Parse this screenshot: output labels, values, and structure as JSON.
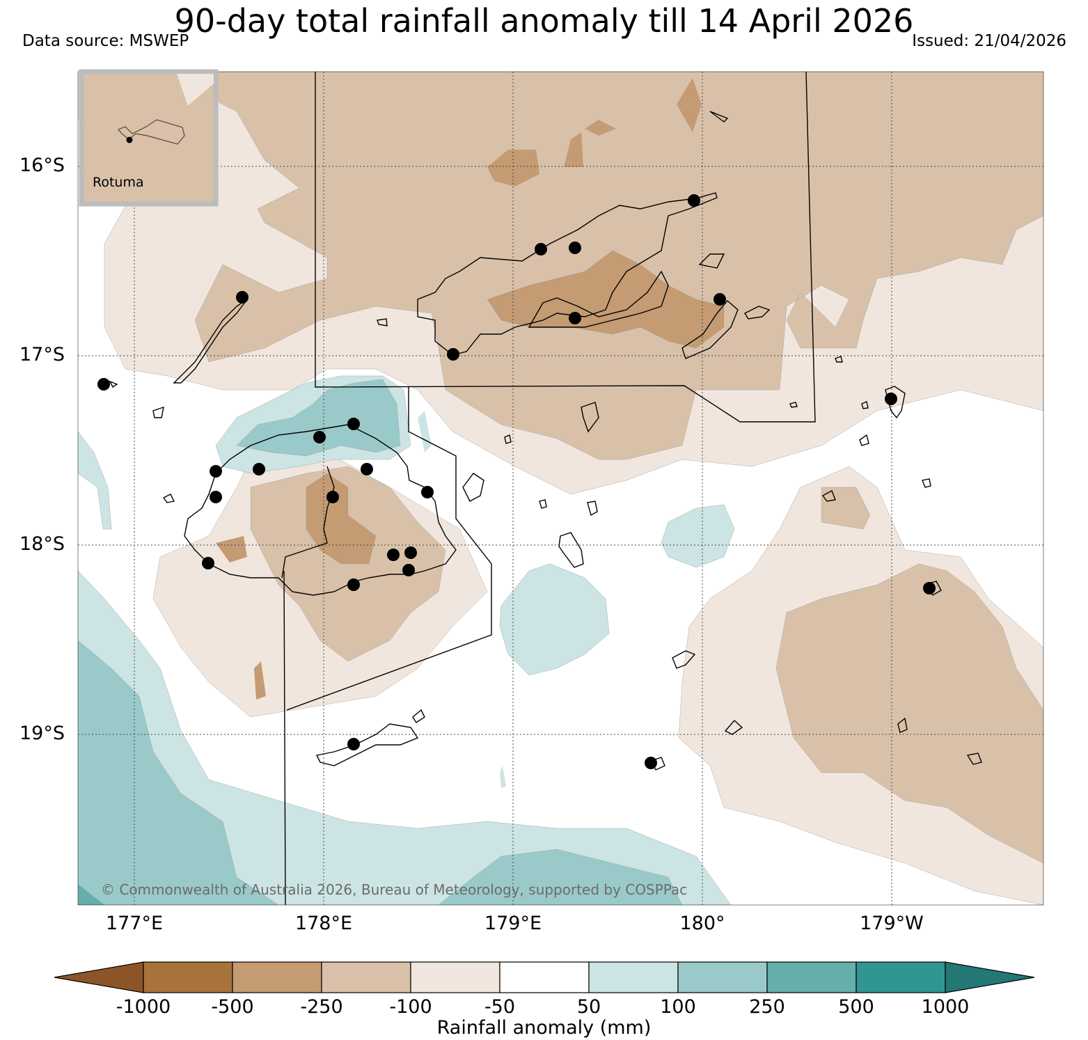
{
  "header": {
    "title": "90-day total rainfall anomaly till 14 April 2026",
    "data_source": "Data source: MSWEP",
    "issued": "Issued: 21/04/2026"
  },
  "map": {
    "latitude_labels": [
      "16°S",
      "17°S",
      "18°S",
      "19°S"
    ],
    "longitude_labels": [
      "177°E",
      "178°E",
      "179°E",
      "180°",
      "179°W"
    ],
    "inset_label": "Rotuma",
    "copyright": "© Commonwealth of Australia 2026, Bureau of Meteorology, supported by COSPPac"
  },
  "colorbar": {
    "label": "Rainfall anomaly (mm)",
    "ticks": [
      "-1000",
      "-500",
      "-250",
      "-100",
      "-50",
      "50",
      "100",
      "250",
      "500",
      "1000"
    ],
    "colors": {
      "below_min": "#8c5527",
      "bin_-1000_-500": "#a8733b",
      "bin_-500_-250": "#c49b72",
      "bin_-250_-100": "#d9c1a9",
      "bin_-100_-50": "#f0e6dd",
      "bin_-50_50": "#ffffff",
      "bin_50_100": "#cce5e4",
      "bin_100_250": "#99cac9",
      "bin_250_500": "#64aeac",
      "bin_500_1000": "#319592",
      "above_max": "#237774"
    }
  }
}
